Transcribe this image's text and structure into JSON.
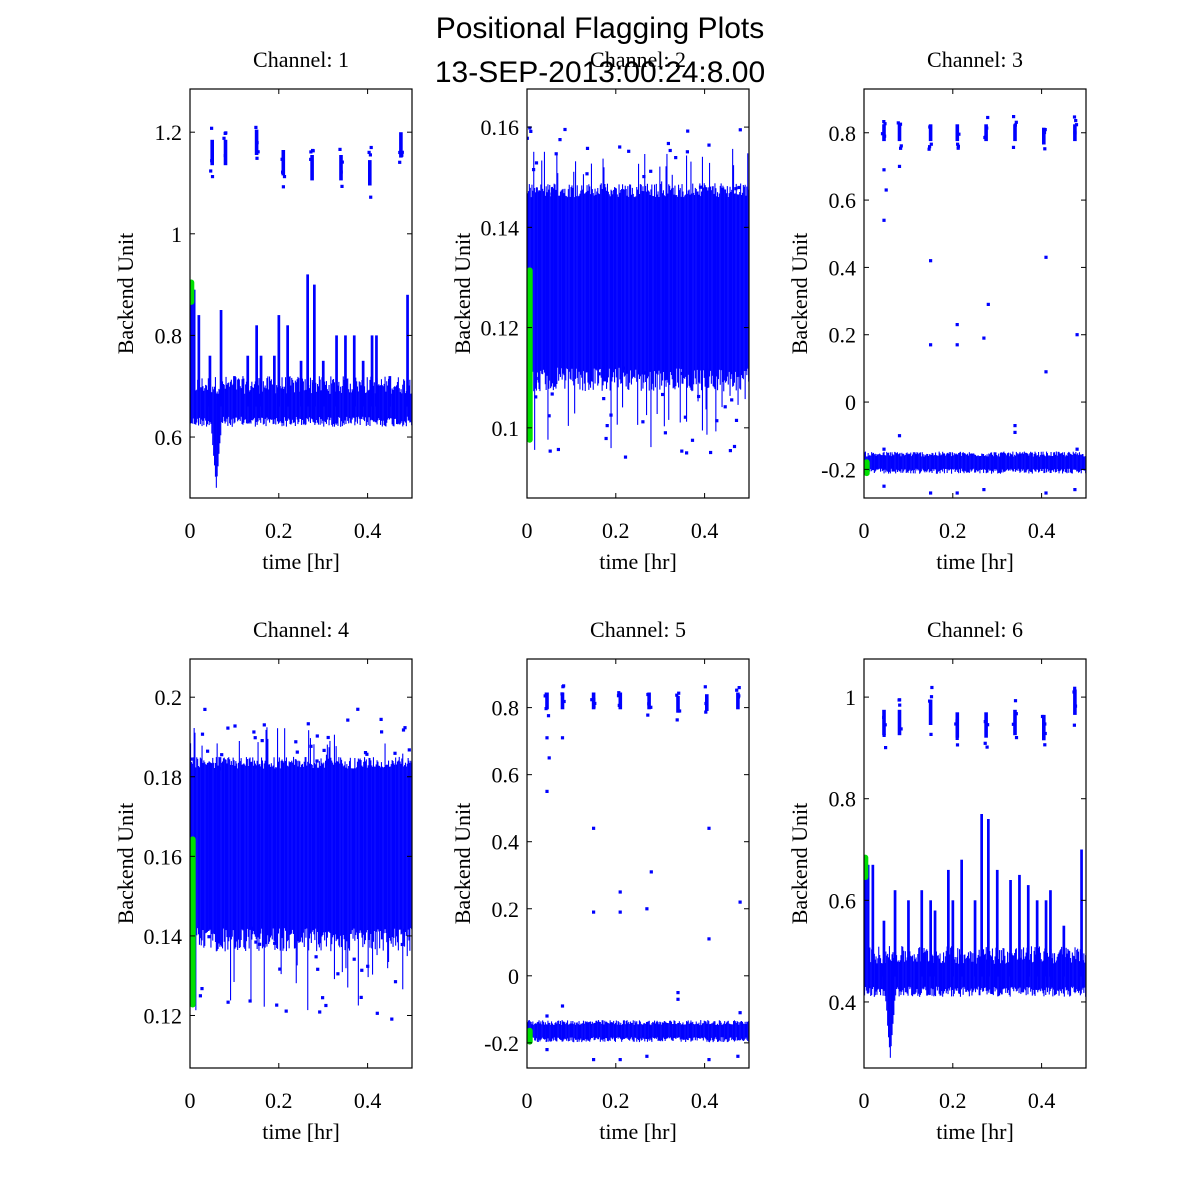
{
  "title_line1": "Positional Flagging Plots",
  "title_line2": "13-SEP-2013:00:24:8.00",
  "colors": {
    "data": "#0000ff",
    "flagged": "#00e000",
    "axes": "#000000"
  },
  "chart_data": [
    {
      "type": "scatter",
      "title": "Channel: 1",
      "xlabel": "time [hr]",
      "ylabel": "Backend Unit",
      "xlim": [
        0,
        0.5
      ],
      "ylim": [
        0.48,
        1.285
      ],
      "xticks": [
        0,
        0.2,
        0.4
      ],
      "xtick_labels": [
        "0",
        "0.2",
        "0.4"
      ],
      "yticks": [
        0.6,
        0.8,
        1.0,
        1.2
      ],
      "ytick_labels": [
        "0.6",
        "0.8",
        "1",
        "1.2"
      ],
      "pattern": "spiky",
      "base": 0.66,
      "band": 0.05,
      "dip": {
        "t": 0.058,
        "min": 0.5
      },
      "spikes": [
        0.02,
        0.045,
        0.07,
        0.1,
        0.13,
        0.15,
        0.16,
        0.19,
        0.2,
        0.22,
        0.25,
        0.265,
        0.28,
        0.3,
        0.33,
        0.35,
        0.37,
        0.39,
        0.41,
        0.42,
        0.45,
        0.49
      ],
      "spike_max": [
        0.84,
        0.76,
        0.85,
        0.72,
        0.76,
        0.82,
        0.76,
        0.76,
        0.84,
        0.82,
        0.75,
        0.92,
        0.9,
        0.75,
        0.8,
        0.8,
        0.8,
        0.75,
        0.8,
        0.8,
        0.72,
        0.88
      ],
      "clusters": [
        {
          "t": 0.05,
          "y": 1.16
        },
        {
          "t": 0.08,
          "y": 1.16
        },
        {
          "t": 0.15,
          "y": 1.18
        },
        {
          "t": 0.21,
          "y": 1.14
        },
        {
          "t": 0.275,
          "y": 1.13
        },
        {
          "t": 0.34,
          "y": 1.13
        },
        {
          "t": 0.405,
          "y": 1.12
        },
        {
          "t": 0.475,
          "y": 1.175
        }
      ],
      "cluster_spread": 0.025,
      "flagged": {
        "t": 0.003,
        "ymin": 0.86,
        "ymax": 0.91
      }
    },
    {
      "type": "scatter",
      "title": "Channel: 2",
      "xlabel": "time [hr]",
      "ylabel": "Backend Unit",
      "xlim": [
        0,
        0.5
      ],
      "ylim": [
        0.086,
        0.1676
      ],
      "xticks": [
        0,
        0.2,
        0.4
      ],
      "xtick_labels": [
        "0",
        "0.2",
        "0.4"
      ],
      "yticks": [
        0.1,
        0.12,
        0.14,
        0.16
      ],
      "ytick_labels": [
        "0.1",
        "0.12",
        "0.14",
        "0.16"
      ],
      "pattern": "dense",
      "band_low": 0.112,
      "band_high": 0.146,
      "outlier_low": 0.093,
      "outlier_high": 0.16,
      "flagged": {
        "t": 0.006,
        "ymin": 0.097,
        "ymax": 0.132
      }
    },
    {
      "type": "scatter",
      "title": "Channel: 3",
      "xlabel": "time [hr]",
      "ylabel": "Backend Unit",
      "xlim": [
        0,
        0.5
      ],
      "ylim": [
        -0.285,
        0.93
      ],
      "xticks": [
        0,
        0.2,
        0.4
      ],
      "xtick_labels": [
        "0",
        "0.2",
        "0.4"
      ],
      "yticks": [
        -0.2,
        0,
        0.2,
        0.4,
        0.6,
        0.8
      ],
      "ytick_labels": [
        "-0.2",
        "0",
        "0.2",
        "0.4",
        "0.6",
        "0.8"
      ],
      "pattern": "flat",
      "base": -0.18,
      "band": 0.03,
      "clusters": [
        {
          "t": 0.045,
          "y": 0.8
        },
        {
          "t": 0.08,
          "y": 0.8
        },
        {
          "t": 0.15,
          "y": 0.8
        },
        {
          "t": 0.21,
          "y": 0.8
        },
        {
          "t": 0.275,
          "y": 0.8
        },
        {
          "t": 0.34,
          "y": 0.8
        },
        {
          "t": 0.405,
          "y": 0.79
        },
        {
          "t": 0.475,
          "y": 0.8
        }
      ],
      "cluster_spread": 0.025,
      "outliers": [
        [
          0.045,
          0.54
        ],
        [
          0.045,
          0.69
        ],
        [
          0.05,
          0.63
        ],
        [
          0.08,
          0.7
        ],
        [
          0.15,
          0.42
        ],
        [
          0.21,
          0.23
        ],
        [
          0.28,
          0.29
        ],
        [
          0.15,
          0.17
        ],
        [
          0.21,
          0.17
        ],
        [
          0.27,
          0.19
        ],
        [
          0.41,
          0.43
        ],
        [
          0.41,
          0.09
        ],
        [
          0.48,
          0.2
        ],
        [
          0.34,
          -0.07
        ],
        [
          0.34,
          -0.09
        ],
        [
          0.08,
          -0.1
        ],
        [
          0.045,
          -0.25
        ],
        [
          0.15,
          -0.27
        ],
        [
          0.21,
          -0.27
        ],
        [
          0.27,
          -0.26
        ],
        [
          0.41,
          -0.27
        ],
        [
          0.475,
          -0.26
        ],
        [
          0.045,
          -0.14
        ],
        [
          0.48,
          -0.14
        ]
      ],
      "flagged": {
        "t": 0.006,
        "ymin": -0.22,
        "ymax": -0.17
      }
    },
    {
      "type": "scatter",
      "title": "Channel: 4",
      "xlabel": "time [hr]",
      "ylabel": "Backend Unit",
      "xlim": [
        0,
        0.5
      ],
      "ylim": [
        0.1068,
        0.2096
      ],
      "xticks": [
        0,
        0.2,
        0.4
      ],
      "xtick_labels": [
        "0",
        "0.2",
        "0.4"
      ],
      "yticks": [
        0.12,
        0.14,
        0.16,
        0.18,
        0.2
      ],
      "ytick_labels": [
        "0.12",
        "0.14",
        "0.16",
        "0.18",
        "0.2"
      ],
      "pattern": "dense",
      "band_low": 0.142,
      "band_high": 0.182,
      "outlier_low": 0.118,
      "outlier_high": 0.197,
      "flagged": {
        "t": 0.006,
        "ymin": 0.122,
        "ymax": 0.165
      }
    },
    {
      "type": "scatter",
      "title": "Channel: 5",
      "xlabel": "time [hr]",
      "ylabel": "Backend Unit",
      "xlim": [
        0,
        0.5
      ],
      "ylim": [
        -0.275,
        0.945
      ],
      "xticks": [
        0,
        0.2,
        0.4
      ],
      "xtick_labels": [
        "0",
        "0.2",
        "0.4"
      ],
      "yticks": [
        -0.2,
        0,
        0.2,
        0.4,
        0.6,
        0.8
      ],
      "ytick_labels": [
        "-0.2",
        "0",
        "0.2",
        "0.4",
        "0.6",
        "0.8"
      ],
      "pattern": "flat",
      "base": -0.165,
      "band": 0.03,
      "clusters": [
        {
          "t": 0.045,
          "y": 0.82
        },
        {
          "t": 0.08,
          "y": 0.82
        },
        {
          "t": 0.15,
          "y": 0.82
        },
        {
          "t": 0.21,
          "y": 0.82
        },
        {
          "t": 0.275,
          "y": 0.82
        },
        {
          "t": 0.34,
          "y": 0.81
        },
        {
          "t": 0.405,
          "y": 0.815
        },
        {
          "t": 0.475,
          "y": 0.82
        }
      ],
      "cluster_spread": 0.025,
      "outliers": [
        [
          0.045,
          0.55
        ],
        [
          0.045,
          0.71
        ],
        [
          0.05,
          0.65
        ],
        [
          0.08,
          0.71
        ],
        [
          0.15,
          0.44
        ],
        [
          0.21,
          0.25
        ],
        [
          0.28,
          0.31
        ],
        [
          0.15,
          0.19
        ],
        [
          0.21,
          0.19
        ],
        [
          0.27,
          0.2
        ],
        [
          0.41,
          0.44
        ],
        [
          0.41,
          0.11
        ],
        [
          0.48,
          0.22
        ],
        [
          0.34,
          -0.05
        ],
        [
          0.34,
          -0.07
        ],
        [
          0.08,
          -0.09
        ],
        [
          0.045,
          -0.22
        ],
        [
          0.15,
          -0.25
        ],
        [
          0.21,
          -0.25
        ],
        [
          0.27,
          -0.24
        ],
        [
          0.41,
          -0.25
        ],
        [
          0.475,
          -0.24
        ],
        [
          0.045,
          -0.12
        ],
        [
          0.48,
          -0.11
        ]
      ],
      "flagged": {
        "t": 0.006,
        "ymin": -0.205,
        "ymax": -0.155
      }
    },
    {
      "type": "scatter",
      "title": "Channel: 6",
      "xlabel": "time [hr]",
      "ylabel": "Backend Unit",
      "xlim": [
        0,
        0.5
      ],
      "ylim": [
        0.27,
        1.075
      ],
      "xticks": [
        0,
        0.2,
        0.4
      ],
      "xtick_labels": [
        "0",
        "0.2",
        "0.4"
      ],
      "yticks": [
        0.4,
        0.6,
        0.8,
        1.0
      ],
      "ytick_labels": [
        "0.4",
        "0.6",
        "0.8",
        "1"
      ],
      "pattern": "spiky",
      "base": 0.45,
      "band": 0.05,
      "dip": {
        "t": 0.058,
        "min": 0.29
      },
      "spikes": [
        0.02,
        0.045,
        0.07,
        0.1,
        0.13,
        0.15,
        0.16,
        0.19,
        0.2,
        0.22,
        0.25,
        0.265,
        0.28,
        0.3,
        0.33,
        0.35,
        0.37,
        0.39,
        0.41,
        0.42,
        0.45,
        0.49
      ],
      "spike_max": [
        0.67,
        0.56,
        0.62,
        0.6,
        0.62,
        0.6,
        0.58,
        0.66,
        0.6,
        0.68,
        0.6,
        0.77,
        0.76,
        0.66,
        0.64,
        0.65,
        0.63,
        0.6,
        0.6,
        0.62,
        0.55,
        0.7
      ],
      "clusters": [
        {
          "t": 0.045,
          "y": 0.95
        },
        {
          "t": 0.08,
          "y": 0.95
        },
        {
          "t": 0.15,
          "y": 0.97
        },
        {
          "t": 0.21,
          "y": 0.945
        },
        {
          "t": 0.275,
          "y": 0.945
        },
        {
          "t": 0.34,
          "y": 0.95
        },
        {
          "t": 0.405,
          "y": 0.94
        },
        {
          "t": 0.475,
          "y": 0.99
        }
      ],
      "cluster_spread": 0.025,
      "flagged": {
        "t": 0.003,
        "ymin": 0.64,
        "ymax": 0.69
      }
    }
  ]
}
